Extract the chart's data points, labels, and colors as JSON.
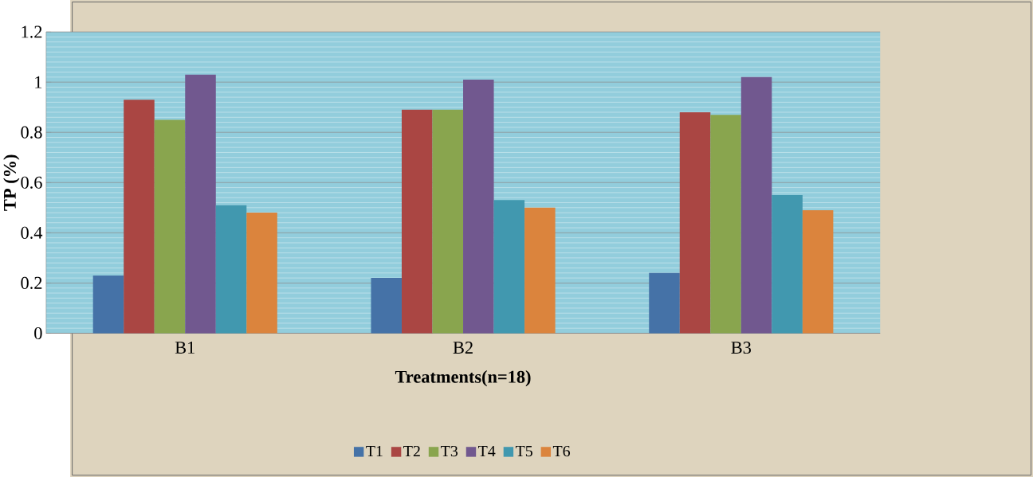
{
  "chart_data": {
    "type": "bar",
    "xlabel": "Treatments(n=18)",
    "ylabel": "TP (%)",
    "categories": [
      "B1",
      "B2",
      "B3"
    ],
    "series": [
      {
        "name": "T1",
        "color": "#4572a7",
        "values": [
          0.23,
          0.22,
          0.24
        ]
      },
      {
        "name": "T2",
        "color": "#aa4643",
        "values": [
          0.93,
          0.89,
          0.88
        ]
      },
      {
        "name": "T3",
        "color": "#89a54e",
        "values": [
          0.85,
          0.89,
          0.87
        ]
      },
      {
        "name": "T4",
        "color": "#71588f",
        "values": [
          1.03,
          1.01,
          1.02
        ]
      },
      {
        "name": "T5",
        "color": "#4198af",
        "values": [
          0.51,
          0.53,
          0.55
        ]
      },
      {
        "name": "T6",
        "color": "#db843d",
        "values": [
          0.48,
          0.5,
          0.49
        ]
      }
    ],
    "ylim": [
      0,
      1.2
    ],
    "yticks": [
      0,
      0.2,
      0.4,
      0.6,
      0.8,
      1,
      1.2
    ],
    "grid": "y",
    "legend": "bottom"
  }
}
